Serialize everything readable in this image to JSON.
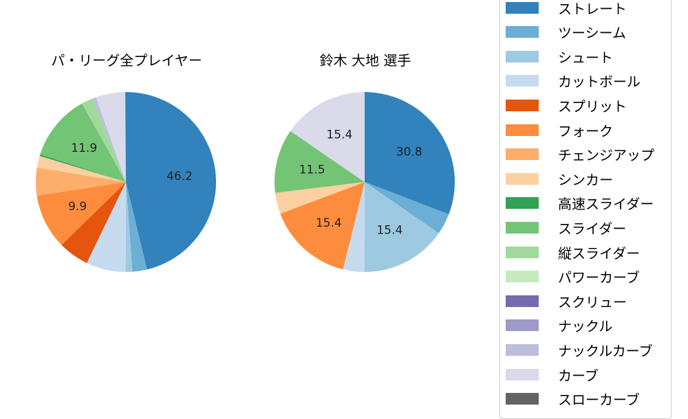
{
  "chart_data": [
    {
      "type": "pie",
      "title": "パ・リーグ全プレイヤー",
      "center": [
        183,
        265
      ],
      "radius": 131,
      "title_pos": [
        184,
        85
      ],
      "categories": [
        "ストレート",
        "ツーシーム",
        "シュート",
        "カットボール",
        "スプリット",
        "フォーク",
        "チェンジアップ",
        "シンカー",
        "高速スライダー",
        "スライダー",
        "縦スライダー",
        "ナックルカーブ",
        "カーブ",
        "スローカーブ"
      ],
      "values": [
        46.2,
        2.6,
        1.2,
        7.1,
        5.5,
        9.9,
        5.0,
        2.1,
        0.3,
        11.9,
        2.1,
        0.6,
        5.3,
        0.1
      ],
      "labels_shown": [
        "46.2",
        "9.9",
        "11.9"
      ],
      "start_angle": 90,
      "direction": "clockwise"
    },
    {
      "type": "pie",
      "title": "鈴木 大地  選手",
      "center": [
        530,
        265
      ],
      "radius": 131,
      "title_pos": [
        531,
        85
      ],
      "categories": [
        "ストレート",
        "ツーシーム",
        "シュート",
        "カットボール",
        "フォーク",
        "シンカー",
        "スライダー",
        "カーブ"
      ],
      "values": [
        30.8,
        3.8,
        15.4,
        3.8,
        15.4,
        3.8,
        11.5,
        15.4
      ],
      "labels_shown": [
        "30.8",
        "15.4",
        "15.4",
        "11.5",
        "15.4"
      ],
      "start_angle": 90,
      "direction": "clockwise"
    }
  ],
  "legend": {
    "items": [
      {
        "label": "ストレート",
        "color": "#3182bd"
      },
      {
        "label": "ツーシーム",
        "color": "#6baed6"
      },
      {
        "label": "シュート",
        "color": "#9ecae1"
      },
      {
        "label": "カットボール",
        "color": "#c6dbef"
      },
      {
        "label": "スプリット",
        "color": "#e6550d"
      },
      {
        "label": "フォーク",
        "color": "#fd8d3c"
      },
      {
        "label": "チェンジアップ",
        "color": "#fdae6b"
      },
      {
        "label": "シンカー",
        "color": "#fdd0a2"
      },
      {
        "label": "高速スライダー",
        "color": "#31a354"
      },
      {
        "label": "スライダー",
        "color": "#74c476"
      },
      {
        "label": "縦スライダー",
        "color": "#a1d99b"
      },
      {
        "label": "パワーカーブ",
        "color": "#c7e9c0"
      },
      {
        "label": "スクリュー",
        "color": "#756bb1"
      },
      {
        "label": "ナックル",
        "color": "#9e9ac8"
      },
      {
        "label": "ナックルカーブ",
        "color": "#bcbddc"
      },
      {
        "label": "カーブ",
        "color": "#dadaeb"
      },
      {
        "label": "スローカーブ",
        "color": "#636363"
      }
    ]
  }
}
